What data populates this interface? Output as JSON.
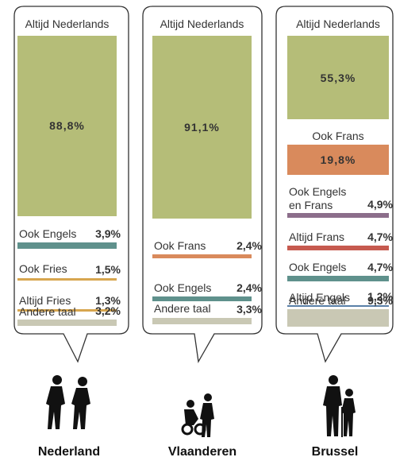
{
  "chart_data": [
    {
      "type": "bar",
      "title": "Nederland",
      "categories": [
        "Altijd Nederlands",
        "Ook Engels",
        "Ook Fries",
        "Altijd Fries",
        "Andere taal"
      ],
      "values": [
        88.8,
        3.9,
        1.5,
        1.3,
        3.2
      ],
      "value_labels": [
        "88,8%",
        "3,9%",
        "1,5%",
        "1,3%",
        "3,2%"
      ],
      "colors": [
        "#b5bd78",
        "#5f918c",
        "#d7a64f",
        "#d7a64f",
        "#c9c8b4"
      ]
    },
    {
      "type": "bar",
      "title": "Vlaanderen",
      "categories": [
        "Altijd Nederlands",
        "Ook Frans",
        "Ook Engels",
        "Andere taal"
      ],
      "values": [
        91.1,
        2.4,
        2.4,
        3.3
      ],
      "value_labels": [
        "91,1%",
        "2,4%",
        "2,4%",
        "3,3%"
      ],
      "colors": [
        "#b5bd78",
        "#d98a5c",
        "#5f918c",
        "#c9c8b4"
      ]
    },
    {
      "type": "bar",
      "title": "Brussel",
      "categories": [
        "Altijd Nederlands",
        "Ook Frans",
        "Ook Engels en Frans",
        "Altijd Frans",
        "Ook Engels",
        "Altijd Engels",
        "Andere taal"
      ],
      "values": [
        55.3,
        19.8,
        4.9,
        4.7,
        4.7,
        1.2,
        9.3
      ],
      "value_labels": [
        "55,3%",
        "19,8%",
        "4,9%",
        "4,7%",
        "4,7%",
        "1,2%",
        "9,3%"
      ],
      "colors": [
        "#b5bd78",
        "#d98a5c",
        "#8c6e8b",
        "#c65a4f",
        "#5f918c",
        "#5a80a8",
        "#c9c8b4"
      ]
    }
  ]
}
